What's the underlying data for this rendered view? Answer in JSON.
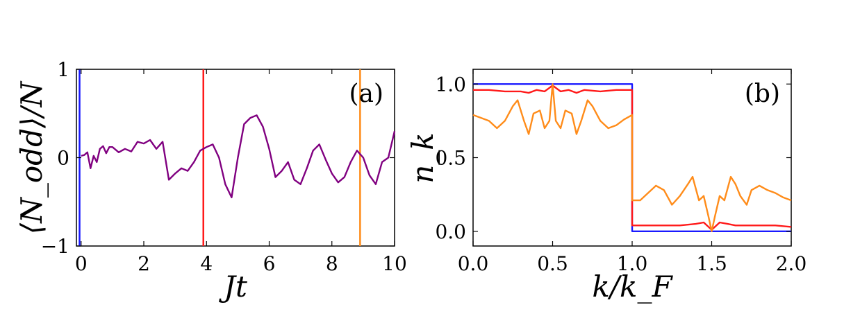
{
  "chart_data": [
    {
      "type": "line",
      "panel_label": "(a)",
      "xlabel": "Jt",
      "ylabel": "⟨N_odd⟩/N",
      "xlim": [
        -0.15,
        10
      ],
      "ylim": [
        -1,
        1
      ],
      "xticks": [
        "0",
        "2",
        "4",
        "6",
        "8",
        "10"
      ],
      "xtick_values": [
        0,
        2,
        4,
        6,
        8,
        10
      ],
      "yticks": [
        "−1",
        "0",
        "1"
      ],
      "ytick_values": [
        -1,
        0,
        1
      ],
      "vlines": [
        {
          "x": -0.05,
          "color": "#1a1aff"
        },
        {
          "x": 3.9,
          "color": "#ff1a1a"
        },
        {
          "x": 8.9,
          "color": "#ff8c1a"
        }
      ],
      "series": [
        {
          "name": "N_odd",
          "color": "#800080",
          "x": [
            0,
            0.1,
            0.2,
            0.3,
            0.4,
            0.5,
            0.6,
            0.7,
            0.8,
            0.9,
            1.0,
            1.2,
            1.4,
            1.6,
            1.8,
            2.0,
            2.2,
            2.4,
            2.6,
            2.8,
            3.0,
            3.2,
            3.4,
            3.6,
            3.8,
            4.0,
            4.2,
            4.4,
            4.6,
            4.8,
            5.0,
            5.2,
            5.4,
            5.6,
            5.8,
            6.0,
            6.2,
            6.4,
            6.6,
            6.8,
            7.0,
            7.2,
            7.4,
            7.6,
            7.8,
            8.0,
            8.2,
            8.4,
            8.6,
            8.8,
            9.0,
            9.2,
            9.4,
            9.6,
            9.8,
            10.0
          ],
          "values": [
            0.02,
            0.03,
            0.06,
            -0.12,
            0.02,
            -0.05,
            0.1,
            0.13,
            0.05,
            0.12,
            0.12,
            0.06,
            0.1,
            0.07,
            0.18,
            0.16,
            0.2,
            0.1,
            0.18,
            -0.25,
            -0.18,
            -0.12,
            -0.15,
            -0.05,
            0.08,
            0.12,
            0.15,
            0.0,
            -0.3,
            -0.45,
            0.0,
            0.38,
            0.45,
            0.48,
            0.35,
            0.1,
            -0.22,
            -0.15,
            -0.05,
            -0.25,
            -0.3,
            -0.12,
            0.08,
            0.15,
            -0.02,
            -0.18,
            -0.28,
            -0.22,
            -0.05,
            0.08,
            0.0,
            -0.2,
            -0.3,
            -0.05,
            0.0,
            0.3
          ]
        }
      ]
    },
    {
      "type": "line",
      "panel_label": "(b)",
      "xlabel": "k/k_F",
      "ylabel": "n_k",
      "xlim": [
        0,
        2
      ],
      "ylim": [
        -0.1,
        1.1
      ],
      "xticks": [
        "0.0",
        "0.5",
        "1.0",
        "1.5",
        "2.0"
      ],
      "xtick_values": [
        0,
        0.5,
        1,
        1.5,
        2
      ],
      "yticks": [
        "0.0",
        "0.5",
        "1.0"
      ],
      "ytick_values": [
        0,
        0.5,
        1
      ],
      "series": [
        {
          "name": "blue",
          "color": "#1a1aff",
          "x": [
            0,
            1.0,
            1.0,
            2.0
          ],
          "values": [
            1.0,
            1.0,
            0.0,
            0.0
          ]
        },
        {
          "name": "red",
          "color": "#ff1a1a",
          "x": [
            0,
            0.1,
            0.2,
            0.3,
            0.35,
            0.4,
            0.45,
            0.5,
            0.55,
            0.6,
            0.65,
            0.7,
            0.8,
            0.9,
            1.0,
            1.0,
            1.1,
            1.2,
            1.3,
            1.4,
            1.45,
            1.5,
            1.55,
            1.6,
            1.65,
            1.7,
            1.8,
            1.9,
            2.0
          ],
          "values": [
            0.96,
            0.96,
            0.95,
            0.95,
            0.94,
            0.96,
            0.95,
            0.99,
            0.95,
            0.96,
            0.94,
            0.96,
            0.95,
            0.96,
            0.96,
            0.04,
            0.04,
            0.04,
            0.04,
            0.05,
            0.06,
            0.01,
            0.06,
            0.05,
            0.04,
            0.04,
            0.04,
            0.04,
            0.03
          ]
        },
        {
          "name": "orange",
          "color": "#ff8c1a",
          "x": [
            0,
            0.05,
            0.1,
            0.15,
            0.2,
            0.25,
            0.28,
            0.32,
            0.35,
            0.38,
            0.42,
            0.45,
            0.48,
            0.5,
            0.52,
            0.55,
            0.58,
            0.62,
            0.65,
            0.68,
            0.72,
            0.75,
            0.8,
            0.85,
            0.9,
            0.95,
            1.0,
            1.0,
            1.05,
            1.1,
            1.15,
            1.2,
            1.25,
            1.3,
            1.35,
            1.38,
            1.42,
            1.45,
            1.48,
            1.5,
            1.52,
            1.55,
            1.58,
            1.62,
            1.65,
            1.68,
            1.72,
            1.75,
            1.8,
            1.85,
            1.9,
            1.95,
            2.0
          ],
          "values": [
            0.79,
            0.77,
            0.75,
            0.7,
            0.75,
            0.85,
            0.89,
            0.75,
            0.66,
            0.8,
            0.82,
            0.7,
            0.75,
            1.0,
            0.75,
            0.7,
            0.82,
            0.8,
            0.66,
            0.75,
            0.89,
            0.85,
            0.75,
            0.7,
            0.72,
            0.76,
            0.79,
            0.21,
            0.21,
            0.26,
            0.31,
            0.28,
            0.18,
            0.24,
            0.32,
            0.37,
            0.21,
            0.24,
            0.1,
            0.0,
            0.1,
            0.24,
            0.21,
            0.37,
            0.32,
            0.24,
            0.18,
            0.28,
            0.31,
            0.28,
            0.26,
            0.23,
            0.21
          ]
        }
      ]
    }
  ]
}
